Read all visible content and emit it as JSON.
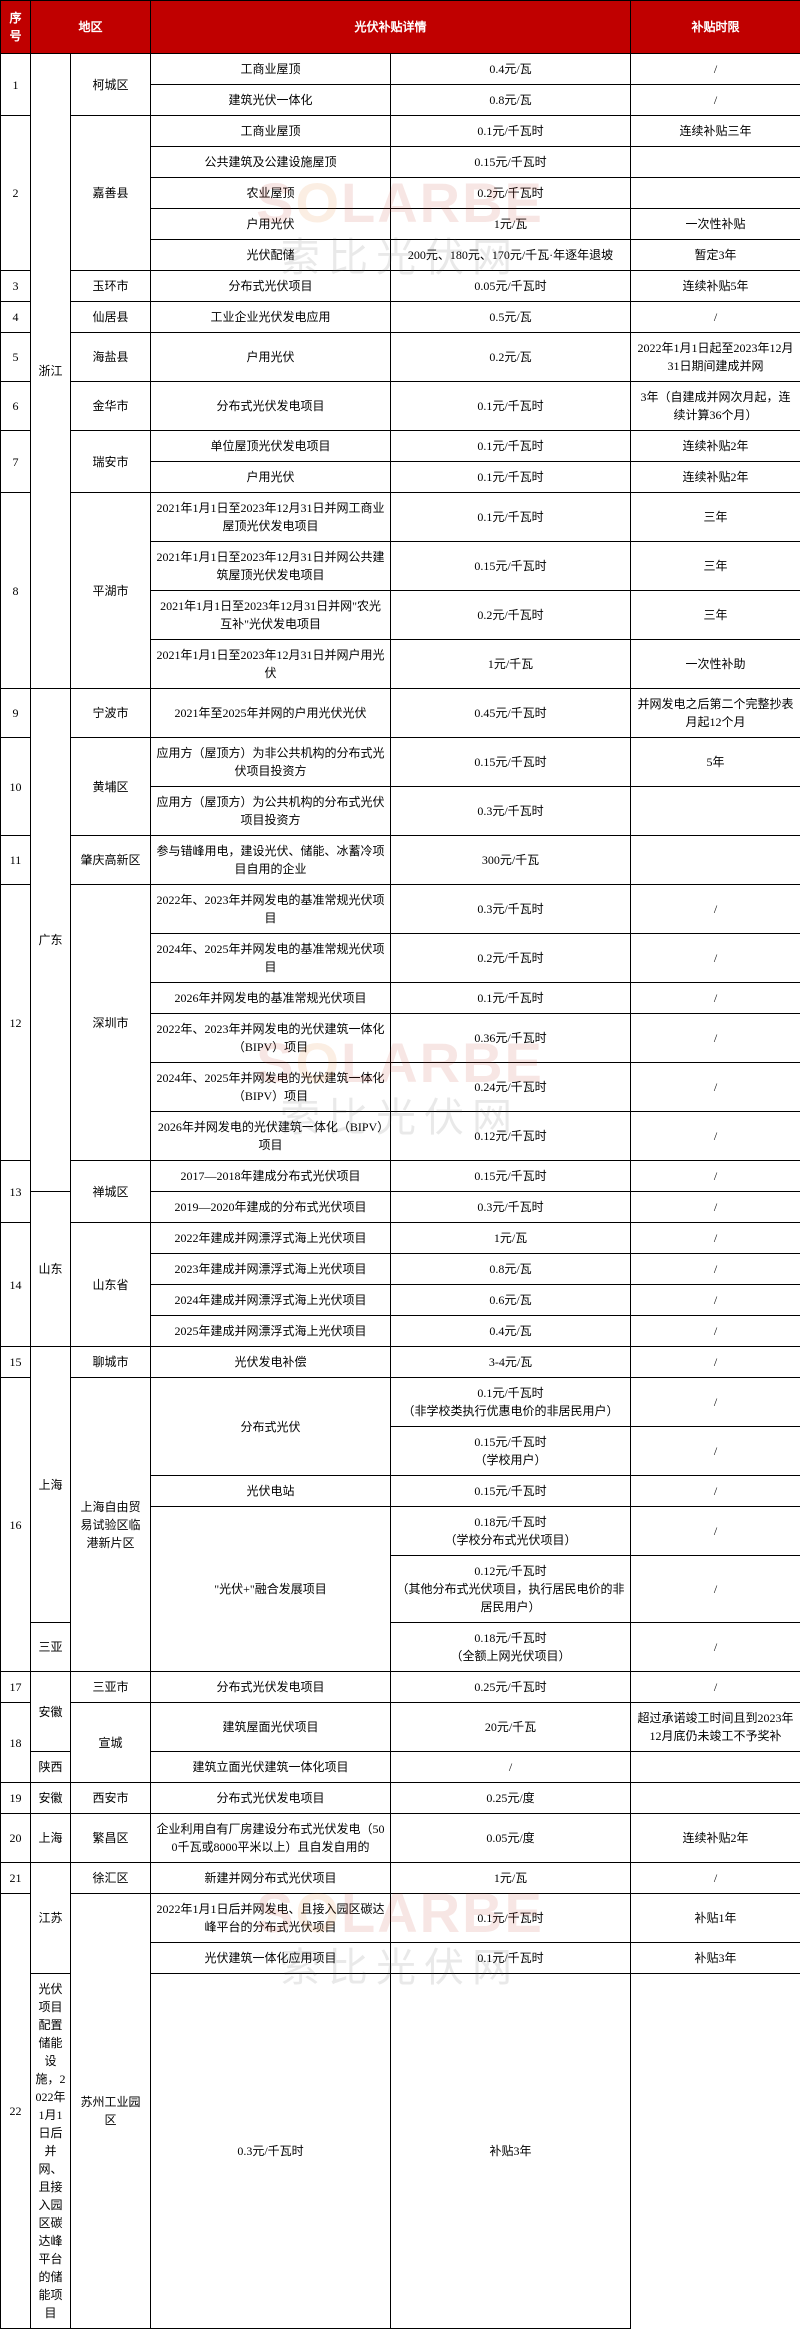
{
  "header": {
    "seq": "序号",
    "region": "地区",
    "detail": "光伏补贴详情",
    "term": "补贴时限"
  },
  "watermark": {
    "latin_prefix": "S",
    "latin_o": "O",
    "latin_rest": "LARBE",
    "cn": "索比光伏网"
  },
  "rows": [
    {
      "seq": "1",
      "prov": "",
      "city": "柯城区",
      "city_rs": 2,
      "items": [
        {
          "desc": "工商业屋顶",
          "amt": "0.4元/瓦",
          "term": "/"
        },
        {
          "desc": "建筑光伏一体化",
          "amt": "0.8元/瓦",
          "term": "/"
        }
      ]
    },
    {
      "seq": "2",
      "city": "嘉善县",
      "city_rs": 5,
      "items": [
        {
          "desc": "工商业屋顶",
          "amt": "0.1元/千瓦时",
          "term": "连续补贴三年"
        },
        {
          "desc": "公共建筑及公建设施屋顶",
          "amt": "0.15元/千瓦时",
          "term": ""
        },
        {
          "desc": "农业屋顶",
          "amt": "0.2元/千瓦时",
          "term": ""
        },
        {
          "desc": "户用光伏",
          "amt": "1元/瓦",
          "term": "一次性补贴"
        },
        {
          "desc": "光伏配储",
          "amt": "200元、180元、170元/千瓦·年逐年退坡",
          "term": "暂定3年"
        }
      ]
    },
    {
      "seq": "3",
      "city": "玉环市",
      "city_rs": 1,
      "items": [
        {
          "desc": "分布式光伏项目",
          "amt": "0.05元/千瓦时",
          "term": "连续补贴5年"
        }
      ]
    },
    {
      "seq": "4",
      "prov": "浙江",
      "prov_rs": 17,
      "city": "仙居县",
      "city_rs": 1,
      "items": [
        {
          "desc": "工业企业光伏发电应用",
          "amt": "0.5元/瓦",
          "term": "/"
        }
      ]
    },
    {
      "seq": "5",
      "city": "海盐县",
      "city_rs": 1,
      "items": [
        {
          "desc": "户用光伏",
          "amt": "0.2元/瓦",
          "term": "2022年1月1日起至2023年12月31日期间建成并网"
        }
      ]
    },
    {
      "seq": "6",
      "city": "金华市",
      "city_rs": 1,
      "items": [
        {
          "desc": "分布式光伏发电项目",
          "amt": "0.1元/千瓦时",
          "term": "3年（自建成并网次月起，连续计算36个月）"
        }
      ]
    },
    {
      "seq": "7",
      "city": "瑞安市",
      "city_rs": 2,
      "items": [
        {
          "desc": "单位屋顶光伏发电项目",
          "amt": "0.1元/千瓦时",
          "term": "连续补贴2年"
        },
        {
          "desc": "户用光伏",
          "amt": "0.1元/千瓦时",
          "term": "连续补贴2年"
        }
      ]
    },
    {
      "seq": "8",
      "city": "平湖市",
      "city_rs": 4,
      "items": [
        {
          "desc": "2021年1月1日至2023年12月31日并网工商业屋顶光伏发电项目",
          "amt": "0.1元/千瓦时",
          "term": "三年"
        },
        {
          "desc": "2021年1月1日至2023年12月31日并网公共建筑屋顶光伏发电项目",
          "amt": "0.15元/千瓦时",
          "term": "三年"
        },
        {
          "desc": "2021年1月1日至2023年12月31日并网\"农光互补\"光伏发电项目",
          "amt": "0.2元/千瓦时",
          "term": "三年"
        },
        {
          "desc": "2021年1月1日至2023年12月31日并网户用光伏",
          "amt": "1元/千瓦",
          "term": "一次性补助"
        }
      ]
    },
    {
      "seq": "9",
      "city": "宁波市",
      "city_rs": 1,
      "items": [
        {
          "desc": "2021年至2025年并网的户用光伏光伏",
          "amt": "0.45元/千瓦时",
          "term": "并网发电之后第二个完整抄表月起12个月"
        }
      ]
    },
    {
      "seq": "10",
      "city": "黄埔区",
      "city_rs": 2,
      "items": [
        {
          "desc": "应用方（屋顶方）为非公共机构的分布式光伏项目投资方",
          "amt": "0.15元/千瓦时",
          "term": "5年"
        },
        {
          "desc": "应用方（屋顶方）为公共机构的分布式光伏项目投资方",
          "amt": "0.3元/千瓦时",
          "term": ""
        }
      ]
    },
    {
      "seq": "11",
      "city": "肇庆高新区",
      "city_rs": 1,
      "items": [
        {
          "desc": "参与错峰用电，建设光伏、储能、冰蓄冷项目自用的企业",
          "amt": "300元/千瓦",
          "term": ""
        }
      ]
    },
    {
      "seq": "12",
      "prov": "广东",
      "prov_rs": 11,
      "city": "深圳市",
      "city_rs": 6,
      "items": [
        {
          "desc": "2022年、2023年并网发电的基准常规光伏项目",
          "amt": "0.3元/千瓦时",
          "term": "/"
        },
        {
          "desc": "2024年、2025年并网发电的基准常规光伏项目",
          "amt": "0.2元/千瓦时",
          "term": "/"
        },
        {
          "desc": "2026年并网发电的基准常规光伏项目",
          "amt": "0.1元/千瓦时",
          "term": "/"
        },
        {
          "desc": "2022年、2023年并网发电的光伏建筑一体化（BIPV）项目",
          "amt": "0.36元/千瓦时",
          "term": "/"
        },
        {
          "desc": "2024年、2025年并网发电的光伏建筑一体化（BIPV）项目",
          "amt": "0.24元/千瓦时",
          "term": "/"
        },
        {
          "desc": "2026年并网发电的光伏建筑一体化（BIPV）项目",
          "amt": "0.12元/千瓦时",
          "term": "/"
        }
      ]
    },
    {
      "seq": "13",
      "city": "禅城区",
      "city_rs": 2,
      "items": [
        {
          "desc": "2017—2018年建成分布式光伏项目",
          "amt": "0.15元/千瓦时",
          "term": "/"
        },
        {
          "desc": "2019—2020年建成的分布式光伏项目",
          "amt": "0.3元/千瓦时",
          "term": "/"
        }
      ]
    },
    {
      "seq": "14",
      "prov": "山东",
      "prov_rs": 5,
      "city": "山东省",
      "city_rs": 4,
      "items": [
        {
          "desc": "2022年建成并网漂浮式海上光伏项目",
          "amt": "1元/瓦",
          "term": "/"
        },
        {
          "desc": "2023年建成并网漂浮式海上光伏项目",
          "amt": "0.8元/瓦",
          "term": "/"
        },
        {
          "desc": "2024年建成并网漂浮式海上光伏项目",
          "amt": "0.6元/瓦",
          "term": "/"
        },
        {
          "desc": "2025年建成并网漂浮式海上光伏项目",
          "amt": "0.4元/瓦",
          "term": "/"
        }
      ]
    },
    {
      "seq": "15",
      "city": "聊城市",
      "city_rs": 1,
      "items": [
        {
          "desc": "光伏发电补偿",
          "amt": "3-4元/瓦",
          "term": "/"
        }
      ]
    },
    {
      "seq": "16",
      "prov": "上海",
      "prov_rs": 6,
      "city": "上海自由贸易试验区临港新片区",
      "city_rs": 6,
      "items": [
        {
          "desc": "分布式光伏",
          "desc_rs": 2,
          "amt": "0.1元/千瓦时\n（非学校类执行优惠电价的非居民用户）",
          "term": "/"
        },
        {
          "amt": "0.15元/千瓦时\n（学校用户）",
          "term": "/"
        },
        {
          "desc": "光伏电站",
          "amt": "0.15元/千瓦时",
          "term": "/"
        },
        {
          "desc": "\"光伏+\"融合发展项目",
          "desc_rs": 3,
          "amt": "0.18元/千瓦时\n（学校分布式光伏项目）",
          "term": "/"
        },
        {
          "amt": "0.12元/千瓦时\n（其他分布式光伏项目，执行居民电价的非居民用户）",
          "term": "/"
        },
        {
          "amt": "0.18元/千瓦时\n（全额上网光伏项目）",
          "term": "/"
        }
      ]
    },
    {
      "seq": "17",
      "prov": "三亚",
      "prov_rs": 1,
      "city": "三亚市",
      "city_rs": 1,
      "items": [
        {
          "desc": "分布式光伏发电项目",
          "amt": "0.25元/千瓦时",
          "term": "/"
        }
      ]
    },
    {
      "seq": "18",
      "prov": "安徽",
      "prov_rs": 2,
      "city": "宣城",
      "city_rs": 2,
      "items": [
        {
          "desc": "建筑屋面光伏项目",
          "amt": "20元/千瓦",
          "term": "超过承诺竣工时间且到2023年12月底仍未竣工不予奖补"
        },
        {
          "desc": "建筑立面光伏建筑一体化项目",
          "amt": "/",
          "term": ""
        }
      ]
    },
    {
      "seq": "19",
      "prov": "陕西",
      "prov_rs": 1,
      "city": "西安市",
      "city_rs": 1,
      "items": [
        {
          "desc": "分布式光伏发电项目",
          "amt": "0.25元/度",
          "term": ""
        }
      ]
    },
    {
      "seq": "20",
      "prov": "安徽",
      "prov_rs": 1,
      "city": "繁昌区",
      "city_rs": 1,
      "items": [
        {
          "desc": "企业利用自有厂房建设分布式光伏发电（500千瓦或8000平米以上）且自发自用的",
          "amt": "0.05元/度",
          "term": "连续补贴2年"
        }
      ]
    },
    {
      "seq": "21",
      "prov": "上海",
      "prov_rs": 1,
      "city": "徐汇区",
      "city_rs": 1,
      "items": [
        {
          "desc": "新建并网分布式光伏项目",
          "amt": "1元/瓦",
          "term": "/"
        }
      ]
    },
    {
      "seq": "22",
      "prov": "江苏",
      "prov_rs": 3,
      "city": "苏州工业园区",
      "city_rs": 3,
      "items": [
        {
          "desc": "2022年1月1日后并网发电、且接入园区碳达峰平台的分布式光伏项目",
          "amt": "0.1元/千瓦时",
          "term": "补贴1年"
        },
        {
          "desc": "光伏建筑一体化应用项目",
          "amt": "0.1元/千瓦时",
          "term": "补贴3年"
        },
        {
          "desc": "光伏项目配置储能设施，2022年1月1日后并网、且接入园区碳达峰平台的储能项目",
          "amt": "0.3元/千瓦时",
          "term": "补贴3年"
        }
      ]
    }
  ],
  "colors": {
    "header_bg": "#c00000",
    "header_fg": "#ffffff",
    "border": "#000000"
  }
}
